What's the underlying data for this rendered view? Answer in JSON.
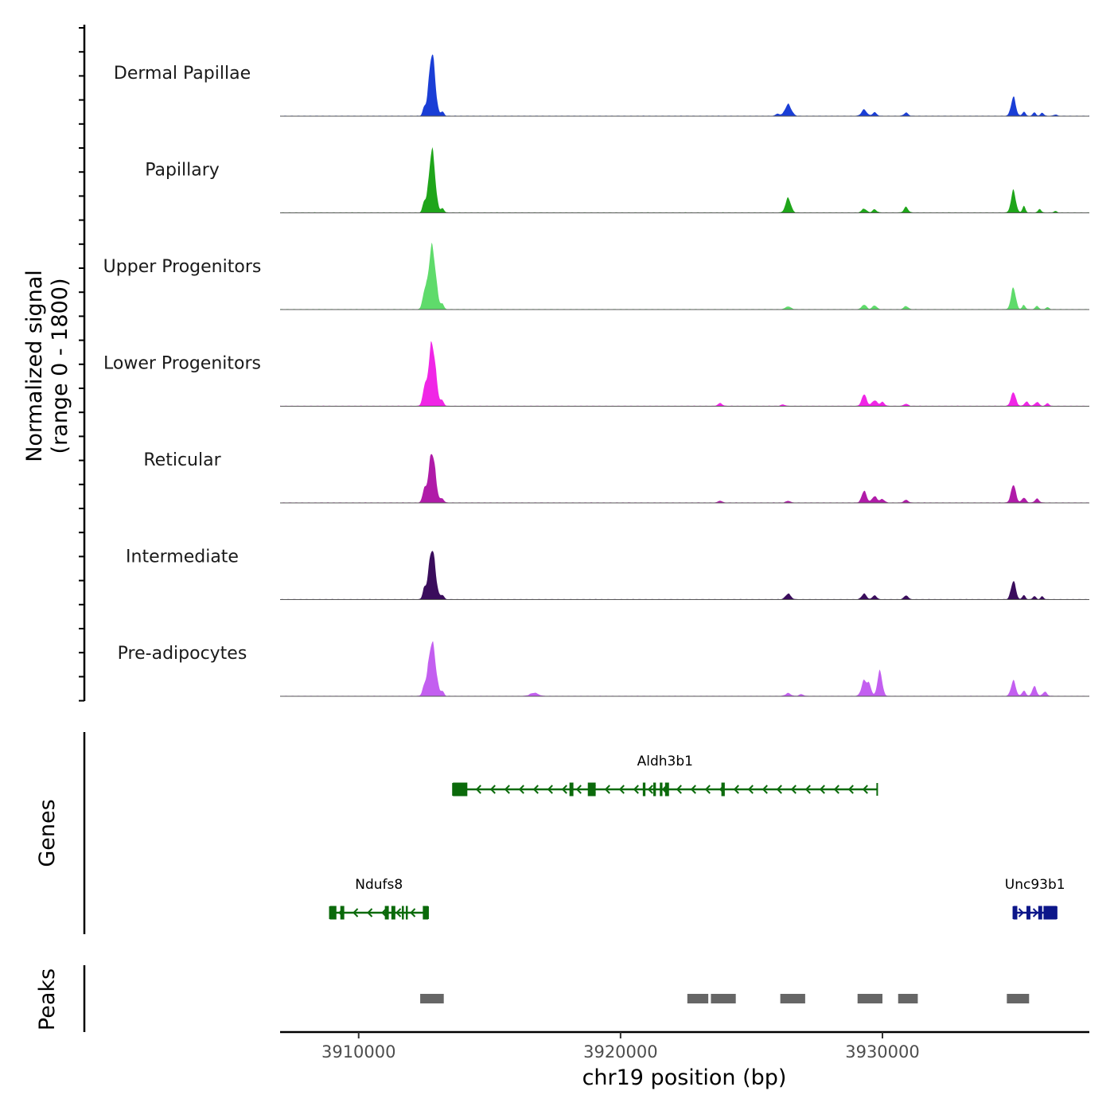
{
  "chart_data": {
    "type": "area",
    "title": "",
    "xlabel": "chr19 position (bp)",
    "ylabel_line1": "Normalized signal",
    "ylabel_line2": "(range 0 - 1800)",
    "ylim": [
      0,
      1800
    ],
    "xlim": [
      3907000,
      3937900
    ],
    "x_ticks": [
      3910000,
      3920000,
      3930000
    ],
    "x_tick_labels": [
      "3910000",
      "3920000",
      "3930000"
    ],
    "genes_label": "Genes",
    "peaks_label": "Peaks",
    "tracks": [
      {
        "name": "Dermal Papillae",
        "color": "#1a3ed6",
        "peaks": [
          {
            "center": 3912800,
            "height": 1800,
            "width": 120
          },
          {
            "center": 3912500,
            "height": 200,
            "width": 60
          },
          {
            "center": 3913200,
            "height": 120,
            "width": 60
          },
          {
            "center": 3926400,
            "height": 330,
            "width": 120
          },
          {
            "center": 3926000,
            "height": 60,
            "width": 80
          },
          {
            "center": 3929300,
            "height": 180,
            "width": 100
          },
          {
            "center": 3929700,
            "height": 100,
            "width": 80
          },
          {
            "center": 3930900,
            "height": 90,
            "width": 80
          },
          {
            "center": 3935000,
            "height": 540,
            "width": 90
          },
          {
            "center": 3935400,
            "height": 120,
            "width": 60
          },
          {
            "center": 3935800,
            "height": 100,
            "width": 60
          },
          {
            "center": 3936100,
            "height": 90,
            "width": 60
          },
          {
            "center": 3936600,
            "height": 40,
            "width": 60
          }
        ]
      },
      {
        "name": "Papillary",
        "color": "#1fa51a",
        "peaks": [
          {
            "center": 3912800,
            "height": 1800,
            "width": 120
          },
          {
            "center": 3912500,
            "height": 280,
            "width": 60
          },
          {
            "center": 3913200,
            "height": 120,
            "width": 60
          },
          {
            "center": 3926400,
            "height": 420,
            "width": 100
          },
          {
            "center": 3929300,
            "height": 110,
            "width": 90
          },
          {
            "center": 3929700,
            "height": 90,
            "width": 80
          },
          {
            "center": 3930900,
            "height": 160,
            "width": 80
          },
          {
            "center": 3935000,
            "height": 630,
            "width": 90
          },
          {
            "center": 3935400,
            "height": 180,
            "width": 60
          },
          {
            "center": 3936000,
            "height": 100,
            "width": 60
          },
          {
            "center": 3936600,
            "height": 40,
            "width": 60
          }
        ]
      },
      {
        "name": "Upper Progenitors",
        "color": "#5fdb6b",
        "peaks": [
          {
            "center": 3912800,
            "height": 1800,
            "width": 140
          },
          {
            "center": 3912500,
            "height": 380,
            "width": 70
          },
          {
            "center": 3913200,
            "height": 130,
            "width": 60
          },
          {
            "center": 3926400,
            "height": 80,
            "width": 100
          },
          {
            "center": 3929300,
            "height": 130,
            "width": 90
          },
          {
            "center": 3929700,
            "height": 110,
            "width": 80
          },
          {
            "center": 3930900,
            "height": 90,
            "width": 80
          },
          {
            "center": 3935000,
            "height": 620,
            "width": 90
          },
          {
            "center": 3935400,
            "height": 120,
            "width": 60
          },
          {
            "center": 3935900,
            "height": 100,
            "width": 60
          },
          {
            "center": 3936300,
            "height": 60,
            "width": 60
          }
        ]
      },
      {
        "name": "Lower Progenitors",
        "color": "#f026e6",
        "peaks": [
          {
            "center": 3912800,
            "height": 1800,
            "width": 140
          },
          {
            "center": 3912500,
            "height": 380,
            "width": 70
          },
          {
            "center": 3913200,
            "height": 130,
            "width": 60
          },
          {
            "center": 3923800,
            "height": 80,
            "width": 80
          },
          {
            "center": 3926200,
            "height": 40,
            "width": 80
          },
          {
            "center": 3929300,
            "height": 340,
            "width": 90
          },
          {
            "center": 3929700,
            "height": 160,
            "width": 100
          },
          {
            "center": 3930000,
            "height": 110,
            "width": 80
          },
          {
            "center": 3930900,
            "height": 60,
            "width": 80
          },
          {
            "center": 3935000,
            "height": 400,
            "width": 90
          },
          {
            "center": 3935500,
            "height": 120,
            "width": 80
          },
          {
            "center": 3935900,
            "height": 110,
            "width": 80
          },
          {
            "center": 3936300,
            "height": 80,
            "width": 60
          }
        ]
      },
      {
        "name": "Reticular",
        "color": "#b01ba8",
        "peaks": [
          {
            "center": 3912800,
            "height": 1450,
            "width": 130
          },
          {
            "center": 3912500,
            "height": 310,
            "width": 70
          },
          {
            "center": 3913200,
            "height": 110,
            "width": 60
          },
          {
            "center": 3923800,
            "height": 50,
            "width": 80
          },
          {
            "center": 3926400,
            "height": 50,
            "width": 80
          },
          {
            "center": 3929300,
            "height": 340,
            "width": 90
          },
          {
            "center": 3929700,
            "height": 180,
            "width": 100
          },
          {
            "center": 3930000,
            "height": 100,
            "width": 80
          },
          {
            "center": 3930900,
            "height": 80,
            "width": 80
          },
          {
            "center": 3935000,
            "height": 520,
            "width": 90
          },
          {
            "center": 3935400,
            "height": 140,
            "width": 80
          },
          {
            "center": 3935900,
            "height": 110,
            "width": 80
          }
        ]
      },
      {
        "name": "Intermediate",
        "color": "#3a0d5c",
        "peaks": [
          {
            "center": 3912800,
            "height": 1450,
            "width": 130
          },
          {
            "center": 3912500,
            "height": 250,
            "width": 60
          },
          {
            "center": 3913200,
            "height": 120,
            "width": 60
          },
          {
            "center": 3926400,
            "height": 160,
            "width": 100
          },
          {
            "center": 3929300,
            "height": 160,
            "width": 90
          },
          {
            "center": 3929700,
            "height": 110,
            "width": 80
          },
          {
            "center": 3930900,
            "height": 110,
            "width": 80
          },
          {
            "center": 3935000,
            "height": 530,
            "width": 90
          },
          {
            "center": 3935400,
            "height": 120,
            "width": 60
          },
          {
            "center": 3935800,
            "height": 90,
            "width": 60
          },
          {
            "center": 3936100,
            "height": 80,
            "width": 60
          }
        ]
      },
      {
        "name": "Pre-adipocytes",
        "color": "#c35ff0",
        "peaks": [
          {
            "center": 3912800,
            "height": 1550,
            "width": 140
          },
          {
            "center": 3912500,
            "height": 200,
            "width": 70
          },
          {
            "center": 3913200,
            "height": 120,
            "width": 60
          },
          {
            "center": 3916700,
            "height": 90,
            "width": 150
          },
          {
            "center": 3926400,
            "height": 80,
            "width": 100
          },
          {
            "center": 3926900,
            "height": 50,
            "width": 80
          },
          {
            "center": 3929300,
            "height": 440,
            "width": 100
          },
          {
            "center": 3929500,
            "height": 300,
            "width": 80
          },
          {
            "center": 3929900,
            "height": 720,
            "width": 90
          },
          {
            "center": 3935000,
            "height": 440,
            "width": 90
          },
          {
            "center": 3935400,
            "height": 150,
            "width": 70
          },
          {
            "center": 3935800,
            "height": 280,
            "width": 80
          },
          {
            "center": 3936200,
            "height": 120,
            "width": 80
          }
        ]
      }
    ],
    "genes": [
      {
        "name": "Aldh3b1",
        "strand": "-",
        "color": "#0b6a0b",
        "start": 3913600,
        "end": 3929800,
        "row": 0,
        "exons": [
          [
            3913600,
            3914150
          ],
          [
            3918050,
            3918200
          ],
          [
            3918750,
            3919050
          ],
          [
            3920850,
            3920950
          ],
          [
            3921250,
            3921350
          ],
          [
            3921500,
            3921600
          ],
          [
            3921700,
            3921850
          ],
          [
            3923850,
            3923980
          ]
        ]
      },
      {
        "name": "Ndufs8",
        "strand": "-",
        "color": "#0b6a0b",
        "start": 3908900,
        "end": 3912650,
        "row": 1,
        "exons": [
          [
            3908900,
            3909150
          ],
          [
            3909300,
            3909450
          ],
          [
            3911000,
            3911150
          ],
          [
            3911250,
            3911400
          ],
          [
            3911650,
            3911720
          ],
          [
            3911800,
            3911870
          ],
          [
            3912450,
            3912650
          ]
        ]
      },
      {
        "name": "Unc93b1",
        "strand": "+",
        "color": "#0c168a",
        "start": 3935000,
        "end": 3936650,
        "row": 1,
        "exons": [
          [
            3935000,
            3935150
          ],
          [
            3935500,
            3935650
          ],
          [
            3935950,
            3936100
          ],
          [
            3936150,
            3936650
          ]
        ]
      }
    ],
    "peak_regions": [
      [
        3912350,
        3913250
      ],
      [
        3922550,
        3923350
      ],
      [
        3923450,
        3924400
      ],
      [
        3926100,
        3927050
      ],
      [
        3929050,
        3930000
      ],
      [
        3930600,
        3931350
      ],
      [
        3934750,
        3935600
      ]
    ]
  }
}
